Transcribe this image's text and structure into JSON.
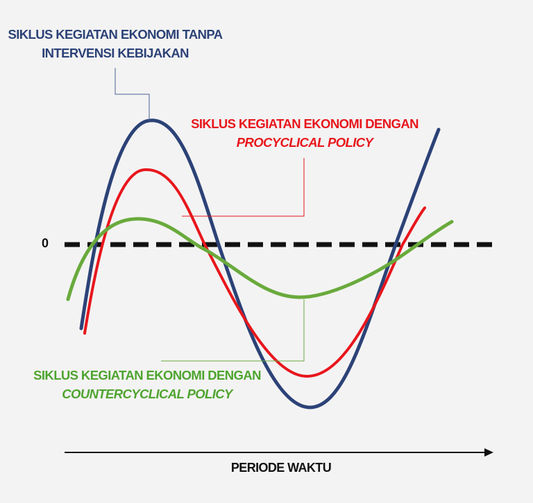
{
  "labels": {
    "no_policy": {
      "line1": "SIKLUS KEGIATAN EKONOMI TANPA",
      "line2": "INTERVENSI KEBIJAKAN"
    },
    "procyclical": {
      "line1": "SIKLUS KEGIATAN EKONOMI DENGAN",
      "line2": "PROCYCLICAL POLICY"
    },
    "countercyclical": {
      "line1": "SIKLUS KEGIATAN EKONOMI DENGAN",
      "line2": "COUNTERCYCLICAL POLICY"
    }
  },
  "zero_label": "0",
  "x_axis_label": "PERIODE WAKTU",
  "colors": {
    "no_policy": "#2c4277",
    "procyclical": "#e8161c",
    "countercyclical": "#69aa3c",
    "baseline": "#111111",
    "axis": "#111111"
  }
}
